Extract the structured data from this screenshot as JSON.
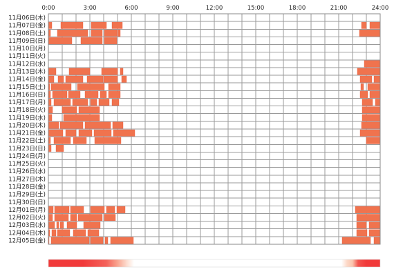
{
  "chart_data": {
    "type": "heatmap",
    "x_ticks": [
      "0:00",
      "3:00",
      "6:00",
      "9:00",
      "12:00",
      "15:00",
      "18:00",
      "21:00",
      "24:00"
    ],
    "xlim_hours": [
      0,
      24
    ],
    "grid": true,
    "colors": {
      "bar_fill": "#f0734e",
      "bar_stroke": "#ea5a3c",
      "grid_line": "#9a9a9a",
      "frame": "#888888",
      "cell_bg": "#ffffff",
      "heat_high": "#f13a3a",
      "heat_mid": "#fbbfa4",
      "heat_low": "#ffffff"
    },
    "rows": [
      {
        "label": "11月06日(木)",
        "bars": []
      },
      {
        "label": "11月07日(金)",
        "bars": [
          [
            0,
            0.25
          ],
          [
            0.9,
            2.5
          ],
          [
            3.1,
            4.2
          ],
          [
            4.6,
            5.35
          ],
          [
            22.65,
            23.0
          ],
          [
            23.25,
            24
          ]
        ]
      },
      {
        "label": "11月08日(土)",
        "bars": [
          [
            0,
            0.15
          ],
          [
            0.65,
            2.85
          ],
          [
            3.1,
            3.9
          ],
          [
            4.05,
            4.95
          ],
          [
            5.0,
            5.2
          ],
          [
            22.5,
            24
          ]
        ]
      },
      {
        "label": "11月09日(日)",
        "bars": [
          [
            0,
            1.7
          ],
          [
            2.35,
            3.9
          ],
          [
            4.05,
            4.95
          ]
        ]
      },
      {
        "label": "11月10日(月)",
        "bars": []
      },
      {
        "label": "11月11日(火)",
        "bars": []
      },
      {
        "label": "11月12日(水)",
        "bars": [
          [
            22.85,
            24
          ]
        ]
      },
      {
        "label": "11月13日(木)",
        "bars": [
          [
            0,
            0.55
          ],
          [
            1.5,
            3.0
          ],
          [
            3.85,
            5.0
          ],
          [
            5.2,
            5.4
          ],
          [
            22.35,
            24
          ]
        ]
      },
      {
        "label": "11月14日(金)",
        "bars": [
          [
            0,
            0.4
          ],
          [
            0.7,
            1.1
          ],
          [
            1.25,
            2.5
          ],
          [
            2.8,
            3.95
          ],
          [
            4.0,
            5.0
          ],
          [
            5.3,
            5.65
          ],
          [
            22.55,
            23.4
          ],
          [
            23.55,
            24
          ]
        ]
      },
      {
        "label": "11月15日(土)",
        "bars": [
          [
            0,
            0.1
          ],
          [
            0.2,
            1.65
          ],
          [
            2.1,
            4.05
          ],
          [
            4.35,
            5.2
          ],
          [
            22.6,
            22.8
          ],
          [
            23.1,
            24
          ]
        ]
      },
      {
        "label": "11月16日(日)",
        "bars": [
          [
            0,
            0.15
          ],
          [
            0.3,
            1.35
          ],
          [
            1.45,
            2.3
          ],
          [
            2.65,
            3.6
          ],
          [
            3.75,
            4.2
          ],
          [
            4.35,
            5.2
          ],
          [
            22.55,
            23.1
          ],
          [
            23.25,
            24
          ]
        ]
      },
      {
        "label": "11月17日(月)",
        "bars": [
          [
            0,
            0.2
          ],
          [
            0.4,
            1.6
          ],
          [
            1.75,
            2.85
          ],
          [
            3.05,
            3.5
          ],
          [
            3.65,
            4.4
          ],
          [
            4.6,
            5.1
          ],
          [
            22.7,
            23.45
          ],
          [
            23.65,
            24
          ]
        ]
      },
      {
        "label": "11月18日(火)",
        "bars": [
          [
            0,
            0.3
          ],
          [
            1.0,
            2.05
          ],
          [
            2.2,
            3.7
          ],
          [
            22.7,
            24
          ]
        ]
      },
      {
        "label": "11月19日(水)",
        "bars": [
          [
            0,
            0.25
          ],
          [
            1.1,
            3.7
          ],
          [
            22.7,
            24
          ]
        ]
      },
      {
        "label": "11月20日(木)",
        "bars": [
          [
            0,
            0.75
          ],
          [
            0.85,
            2.5
          ],
          [
            2.65,
            4.5
          ],
          [
            4.65,
            5.4
          ],
          [
            22.65,
            24
          ]
        ]
      },
      {
        "label": "11月21日(金)",
        "bars": [
          [
            0,
            1.05
          ],
          [
            1.25,
            2.0
          ],
          [
            2.2,
            3.15
          ],
          [
            3.3,
            4.55
          ],
          [
            4.7,
            6.25
          ],
          [
            22.55,
            24
          ]
        ]
      },
      {
        "label": "11月22日(土)",
        "bars": [
          [
            0,
            0.15
          ],
          [
            0.4,
            1.6
          ],
          [
            1.8,
            2.75
          ],
          [
            3.35,
            5.25
          ],
          [
            23.0,
            24
          ]
        ]
      },
      {
        "label": "11月23日(日)",
        "bars": [
          [
            0,
            0.2
          ],
          [
            0.55,
            1.1
          ]
        ]
      },
      {
        "label": "11月24日(月)",
        "bars": []
      },
      {
        "label": "11月25日(火)",
        "bars": []
      },
      {
        "label": "11月26日(水)",
        "bars": []
      },
      {
        "label": "11月27日(木)",
        "bars": []
      },
      {
        "label": "11月28日(金)",
        "bars": []
      },
      {
        "label": "11月29日(土)",
        "bars": []
      },
      {
        "label": "11月30日(日)",
        "bars": []
      },
      {
        "label": "12月01日(月)",
        "bars": [
          [
            0,
            0.35
          ],
          [
            0.45,
            1.5
          ],
          [
            1.6,
            2.55
          ],
          [
            3.05,
            4.05
          ],
          [
            4.2,
            4.8
          ],
          [
            4.95,
            5.55
          ],
          [
            22.2,
            24
          ]
        ]
      },
      {
        "label": "12月02日(火)",
        "bars": [
          [
            0,
            0.3
          ],
          [
            0.45,
            1.45
          ],
          [
            1.6,
            2.05
          ],
          [
            2.15,
            3.9
          ],
          [
            4.05,
            4.85
          ],
          [
            22.3,
            24
          ]
        ]
      },
      {
        "label": "12月03日(水)",
        "bars": [
          [
            0,
            0.45
          ],
          [
            0.6,
            0.75
          ],
          [
            0.85,
            1.1
          ],
          [
            1.35,
            2.05
          ],
          [
            2.55,
            3.75
          ],
          [
            22.3,
            23.0
          ],
          [
            23.2,
            24
          ]
        ]
      },
      {
        "label": "12月04日(木)",
        "bars": [
          [
            0,
            0.1
          ],
          [
            0.25,
            0.55
          ],
          [
            0.65,
            1.55
          ],
          [
            1.8,
            2.7
          ],
          [
            2.85,
            3.65
          ],
          [
            22.3,
            23.05
          ],
          [
            23.2,
            24
          ]
        ]
      },
      {
        "label": "12月05日(金)",
        "bars": [
          [
            0,
            0.05
          ],
          [
            0.2,
            2.95
          ],
          [
            3.05,
            3.95
          ],
          [
            4.1,
            4.3
          ],
          [
            4.5,
            6.15
          ],
          [
            21.25,
            23.3
          ],
          [
            23.55,
            24
          ]
        ]
      }
    ],
    "heat_profile": [
      [
        0,
        1.0
      ],
      [
        2.5,
        1.0
      ],
      [
        4.2,
        0.85
      ],
      [
        5.0,
        0.6
      ],
      [
        5.7,
        0.25
      ],
      [
        6.2,
        0.0
      ],
      [
        21.2,
        0.0
      ],
      [
        21.6,
        0.3
      ],
      [
        22.0,
        0.45
      ],
      [
        22.4,
        0.9
      ],
      [
        23.0,
        1.0
      ],
      [
        24,
        1.0
      ]
    ]
  }
}
